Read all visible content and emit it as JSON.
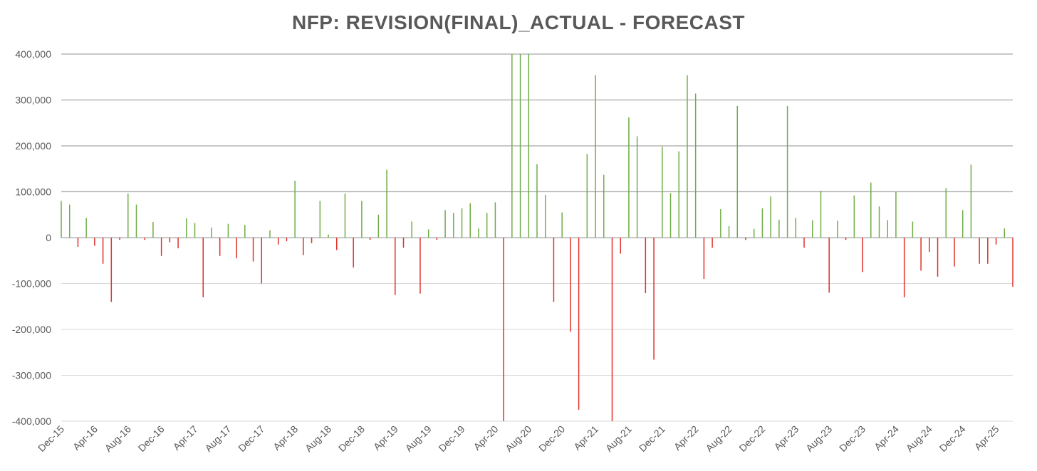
{
  "chart_data": {
    "type": "bar",
    "title": "NFP: REVISION(FINAL)_ACTUAL - FORECAST",
    "xlabel": "",
    "ylabel": "",
    "ylim": [
      -400000,
      400000
    ],
    "grid": true,
    "legend": "none",
    "colors": {
      "positive": "#70ad47",
      "negative": "#e0302a",
      "major_grid": "#a6a6a6",
      "minor_grid": "#d9d9d9",
      "text": "#595959"
    },
    "y_ticks": [
      {
        "value": 400000,
        "label": "400,000"
      },
      {
        "value": 300000,
        "label": "300,000"
      },
      {
        "value": 200000,
        "label": "200,000"
      },
      {
        "value": 100000,
        "label": "100,000"
      },
      {
        "value": 0,
        "label": "0"
      },
      {
        "value": -100000,
        "label": "-100,000"
      },
      {
        "value": -200000,
        "label": "-200,000"
      },
      {
        "value": -300000,
        "label": "-300,000"
      },
      {
        "value": -400000,
        "label": "-400,000"
      }
    ],
    "x_tick_labels": [
      "Dec-15",
      "Apr-16",
      "Aug-16",
      "Dec-16",
      "Apr-17",
      "Aug-17",
      "Dec-17",
      "Apr-18",
      "Aug-18",
      "Dec-18",
      "Apr-19",
      "Aug-19",
      "Dec-19",
      "Apr-20",
      "Aug-20",
      "Dec-20",
      "Apr-21",
      "Aug-21",
      "Dec-21",
      "Apr-22",
      "Aug-22",
      "Dec-22",
      "Apr-23",
      "Aug-23",
      "Dec-23",
      "Apr-24",
      "Aug-24",
      "Dec-24",
      "Apr-25"
    ],
    "categories": [
      "Dec-15",
      "Jan-16",
      "Feb-16",
      "Mar-16",
      "Apr-16",
      "May-16",
      "Jun-16",
      "Jul-16",
      "Aug-16",
      "Sep-16",
      "Oct-16",
      "Nov-16",
      "Dec-16",
      "Jan-17",
      "Feb-17",
      "Mar-17",
      "Apr-17",
      "May-17",
      "Jun-17",
      "Jul-17",
      "Aug-17",
      "Sep-17",
      "Oct-17",
      "Nov-17",
      "Dec-17",
      "Jan-18",
      "Feb-18",
      "Mar-18",
      "Apr-18",
      "May-18",
      "Jun-18",
      "Jul-18",
      "Aug-18",
      "Sep-18",
      "Oct-18",
      "Nov-18",
      "Dec-18",
      "Jan-19",
      "Feb-19",
      "Mar-19",
      "Apr-19",
      "May-19",
      "Jun-19",
      "Jul-19",
      "Aug-19",
      "Sep-19",
      "Oct-19",
      "Nov-19",
      "Dec-19",
      "Jan-20",
      "Feb-20",
      "Mar-20",
      "Apr-20",
      "May-20",
      "Jun-20",
      "Jul-20",
      "Aug-20",
      "Sep-20",
      "Oct-20",
      "Nov-20",
      "Dec-20",
      "Jan-21",
      "Feb-21",
      "Mar-21",
      "Apr-21",
      "May-21",
      "Jun-21",
      "Jul-21",
      "Aug-21",
      "Sep-21",
      "Oct-21",
      "Nov-21",
      "Dec-21",
      "Jan-22",
      "Feb-22",
      "Mar-22",
      "Apr-22",
      "May-22",
      "Jun-22",
      "Jul-22",
      "Aug-22",
      "Sep-22",
      "Oct-22",
      "Nov-22",
      "Dec-22",
      "Jan-23",
      "Feb-23",
      "Mar-23",
      "Apr-23",
      "May-23",
      "Jun-23",
      "Jul-23",
      "Aug-23",
      "Sep-23",
      "Oct-23",
      "Nov-23",
      "Dec-23",
      "Jan-24",
      "Feb-24",
      "Mar-24",
      "Apr-24",
      "May-24",
      "Jun-24",
      "Jul-24",
      "Aug-24",
      "Sep-24",
      "Oct-24",
      "Nov-24",
      "Dec-24",
      "Jan-25",
      "Feb-25",
      "Mar-25",
      "Apr-25",
      "May-25",
      "Jun-25"
    ],
    "values": [
      80000,
      72000,
      -20000,
      43000,
      -18000,
      -57000,
      -140000,
      -5000,
      96000,
      72000,
      -5000,
      34000,
      -40000,
      -10000,
      -23000,
      42000,
      32000,
      -130000,
      22000,
      -40000,
      30000,
      -45000,
      28000,
      -52000,
      -100000,
      16000,
      -15000,
      -8000,
      124000,
      -38000,
      -12000,
      80000,
      7000,
      -27000,
      96000,
      -65000,
      80000,
      -5000,
      50000,
      148000,
      -125000,
      -22000,
      35000,
      -122000,
      18000,
      -5000,
      60000,
      54000,
      64000,
      75000,
      20000,
      54000,
      77000,
      -400000,
      400000,
      400000,
      400000,
      160000,
      93000,
      -140000,
      55000,
      -205000,
      -375000,
      182000,
      354000,
      137000,
      -400000,
      -35000,
      262000,
      221000,
      -121000,
      -266000,
      198000,
      97000,
      188000,
      354000,
      314000,
      -90000,
      -22000,
      62000,
      25000,
      287000,
      -5000,
      19000,
      64000,
      90000,
      39000,
      287000,
      43000,
      -22000,
      38000,
      102000,
      -120000,
      37000,
      -5000,
      92000,
      -75000,
      120000,
      68000,
      38000,
      100000,
      -130000,
      35000,
      -72000,
      -31000,
      -85000,
      108000,
      -63000,
      60000,
      159000,
      -57000,
      -57000,
      -15000,
      20000,
      -107000
    ]
  }
}
